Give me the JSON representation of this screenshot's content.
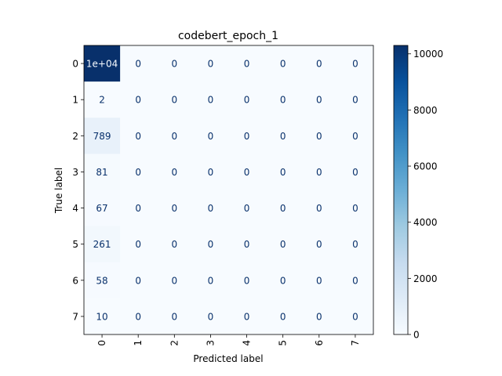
{
  "chart_data": {
    "type": "heatmap",
    "title": "codebert_epoch_1",
    "xlabel": "Predicted label",
    "ylabel": "True label",
    "x_tick_labels": [
      "0",
      "1",
      "2",
      "3",
      "4",
      "5",
      "6",
      "7"
    ],
    "y_tick_labels": [
      "0",
      "1",
      "2",
      "3",
      "4",
      "5",
      "6",
      "7"
    ],
    "values": [
      [
        10300,
        0,
        0,
        0,
        0,
        0,
        0,
        0
      ],
      [
        2,
        0,
        0,
        0,
        0,
        0,
        0,
        0
      ],
      [
        789,
        0,
        0,
        0,
        0,
        0,
        0,
        0
      ],
      [
        81,
        0,
        0,
        0,
        0,
        0,
        0,
        0
      ],
      [
        67,
        0,
        0,
        0,
        0,
        0,
        0,
        0
      ],
      [
        261,
        0,
        0,
        0,
        0,
        0,
        0,
        0
      ],
      [
        58,
        0,
        0,
        0,
        0,
        0,
        0,
        0
      ],
      [
        10,
        0,
        0,
        0,
        0,
        0,
        0,
        0
      ]
    ],
    "cell_labels": [
      [
        "1e+04",
        "0",
        "0",
        "0",
        "0",
        "0",
        "0",
        "0"
      ],
      [
        "2",
        "0",
        "0",
        "0",
        "0",
        "0",
        "0",
        "0"
      ],
      [
        "789",
        "0",
        "0",
        "0",
        "0",
        "0",
        "0",
        "0"
      ],
      [
        "81",
        "0",
        "0",
        "0",
        "0",
        "0",
        "0",
        "0"
      ],
      [
        "67",
        "0",
        "0",
        "0",
        "0",
        "0",
        "0",
        "0"
      ],
      [
        "261",
        "0",
        "0",
        "0",
        "0",
        "0",
        "0",
        "0"
      ],
      [
        "58",
        "0",
        "0",
        "0",
        "0",
        "0",
        "0",
        "0"
      ],
      [
        "10",
        "0",
        "0",
        "0",
        "0",
        "0",
        "0",
        "0"
      ]
    ],
    "colormap": "Blues",
    "color_range": [
      0,
      10300
    ],
    "colorbar_ticks": [
      0,
      2000,
      4000,
      6000,
      8000,
      10000
    ],
    "colorbar_tick_labels": [
      "0",
      "2000",
      "4000",
      "6000",
      "8000",
      "10000"
    ],
    "colors": {
      "low": "#f7fbff",
      "high": "#08306b",
      "text_dark": "#08306b",
      "text_light": "#f7fbff"
    }
  }
}
